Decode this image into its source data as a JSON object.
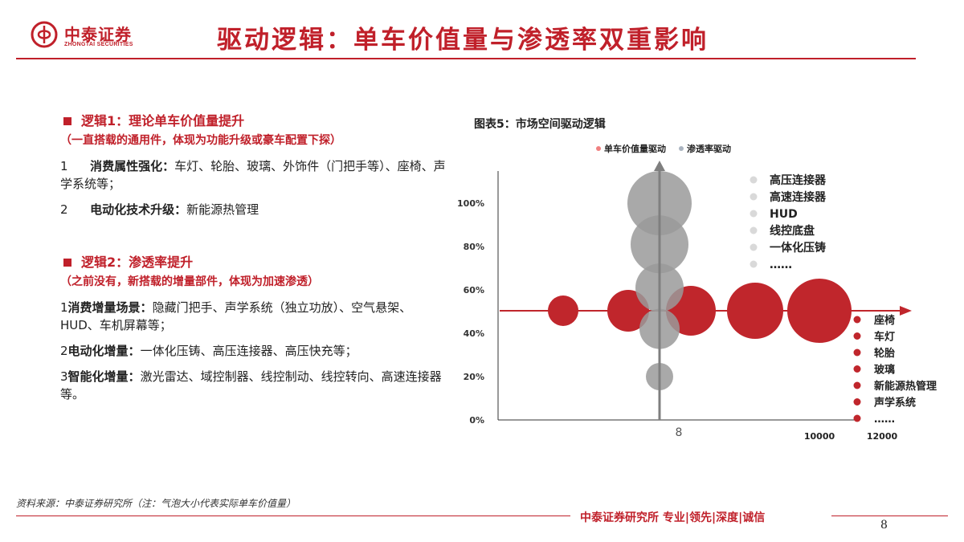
{
  "header": {
    "logo_cn": "中泰证券",
    "logo_en": "ZHONGTAI SECURITIES",
    "title": "驱动逻辑：单车价值量与渗透率双重影响"
  },
  "left": {
    "logic1": {
      "heading": "逻辑1：理论单车价值量提升",
      "sub": "（一直搭载的通用件，体现为功能升级或豪车配置下探）",
      "items": [
        {
          "prefix": "1 ",
          "bold": "消费属性强化：",
          "text": "车灯、轮胎、玻璃、外饰件（门把手等）、座椅、声学系统等；"
        },
        {
          "prefix": "2 ",
          "bold": "电动化技术升级：",
          "text": "新能源热管理"
        }
      ]
    },
    "logic2": {
      "heading": "逻辑2：渗透率提升",
      "sub": "（之前没有，新搭载的增量部件，体现为加速渗透）",
      "items": [
        {
          "prefix": "1",
          "bold": "消费增量场景：",
          "text": "隐藏门把手、声学系统（独立功放）、空气悬架、HUD、车机屏幕等；"
        },
        {
          "prefix": "2",
          "bold": "电动化增量：",
          "text": "一体化压铸、高压连接器、高压快充等；"
        },
        {
          "prefix": "3",
          "bold": "智能化增量：",
          "text": "激光雷达、域控制器、线控制动、线控转向、高速连接器等。"
        }
      ]
    }
  },
  "chart_data": {
    "type": "scatter",
    "title": "图表5：市场空间驱动逻辑",
    "legend": [
      "单车价值量驱动",
      "渗透率驱动"
    ],
    "colors": {
      "value": "#c0262c",
      "penetration": "#9a9a9a",
      "axis": "#c0262c",
      "vaxis": "#7f7f7f"
    },
    "y_ticks": [
      "100%",
      "80%",
      "60%",
      "40%",
      "20%",
      "0%"
    ],
    "x_tick_labels": [
      "8",
      "10000",
      "12000"
    ],
    "grey_labels": [
      "高压连接器",
      "高速连接器",
      "HUD",
      "线控底盘",
      "一体化压铸",
      "……"
    ],
    "red_labels": [
      "座椅",
      "车灯",
      "轮胎",
      "玻璃",
      "新能源热管理",
      "声学系统",
      "……"
    ],
    "grey_bubbles": [
      {
        "y": 100,
        "size": 40
      },
      {
        "y": 81,
        "size": 36
      },
      {
        "y": 61,
        "size": 30
      },
      {
        "y": 42,
        "size": 25
      },
      {
        "y": 20,
        "size": 17
      }
    ],
    "red_bubbles": [
      {
        "order": 1,
        "size": 19
      },
      {
        "order": 2,
        "size": 26
      },
      {
        "order": 3,
        "size": 31
      },
      {
        "order": 4,
        "size": 35
      },
      {
        "order": 5,
        "size": 40
      }
    ]
  },
  "footer": {
    "source": "资料来源：中泰证券研究所（注：气泡大小代表实际单车价值量）",
    "brand": "中泰证券研究所 专业|领先|深度|诚信",
    "page": "8"
  }
}
